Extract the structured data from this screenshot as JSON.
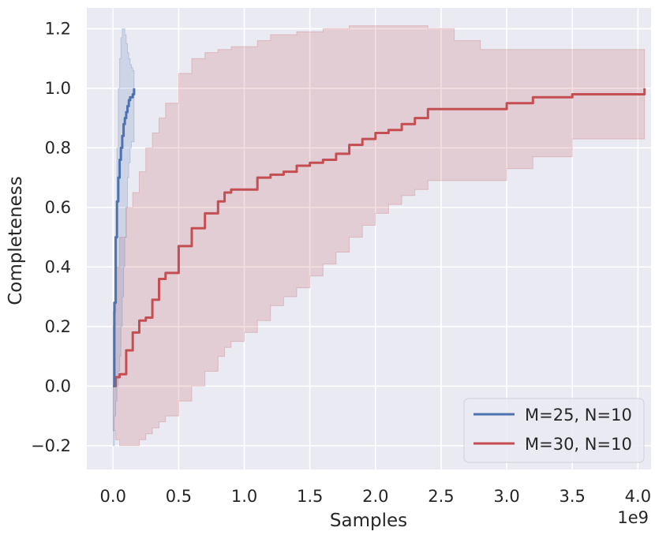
{
  "chart_data": {
    "type": "line",
    "title": "",
    "xlabel": "Samples",
    "ylabel": "Completeness",
    "x_offset_text": "1e9",
    "xlim": [
      -0.2,
      4.1
    ],
    "ylim": [
      -0.28,
      1.27
    ],
    "grid": true,
    "legend_position": "lower right",
    "x_ticks": [
      0.0,
      0.5,
      1.0,
      1.5,
      2.0,
      2.5,
      3.0,
      3.5,
      4.0
    ],
    "x_tick_labels": [
      "0.0",
      "0.5",
      "1.0",
      "1.5",
      "2.0",
      "2.5",
      "3.0",
      "3.5",
      "4.0"
    ],
    "y_ticks": [
      -0.2,
      0.0,
      0.2,
      0.4,
      0.6,
      0.8,
      1.0,
      1.2
    ],
    "y_tick_labels": [
      "−0.2",
      "0.0",
      "0.2",
      "0.4",
      "0.6",
      "0.8",
      "1.0",
      "1.2"
    ],
    "series": [
      {
        "name": "M=25, N=10",
        "color": "#4c72b0",
        "x": [
          0.0,
          0.01,
          0.02,
          0.03,
          0.04,
          0.05,
          0.06,
          0.07,
          0.08,
          0.09,
          0.1,
          0.11,
          0.12,
          0.13,
          0.14,
          0.15,
          0.16
        ],
        "y": [
          0.0,
          0.28,
          0.5,
          0.62,
          0.7,
          0.76,
          0.8,
          0.84,
          0.88,
          0.9,
          0.92,
          0.94,
          0.96,
          0.97,
          0.97,
          0.98,
          1.0
        ],
        "lower": [
          -0.2,
          -0.1,
          -0.05,
          0.0,
          0.05,
          0.1,
          0.2,
          0.3,
          0.4,
          0.5,
          0.6,
          0.7,
          0.75,
          0.8,
          0.82,
          0.82,
          0.82
        ],
        "upper": [
          0.2,
          0.25,
          0.5,
          0.8,
          1.0,
          1.1,
          1.17,
          1.2,
          1.2,
          1.18,
          1.15,
          1.12,
          1.1,
          1.08,
          1.07,
          1.06,
          1.06
        ]
      },
      {
        "name": "M=30, N=10",
        "color": "#c44e52",
        "x": [
          0.0,
          0.02,
          0.05,
          0.1,
          0.15,
          0.2,
          0.25,
          0.3,
          0.35,
          0.4,
          0.5,
          0.6,
          0.7,
          0.8,
          0.85,
          0.9,
          1.0,
          1.1,
          1.2,
          1.3,
          1.4,
          1.5,
          1.6,
          1.7,
          1.8,
          1.9,
          2.0,
          2.1,
          2.2,
          2.3,
          2.4,
          2.6,
          2.8,
          3.0,
          3.2,
          3.5,
          3.8,
          4.0,
          4.05
        ],
        "y": [
          0.0,
          0.03,
          0.04,
          0.12,
          0.18,
          0.22,
          0.23,
          0.29,
          0.36,
          0.38,
          0.47,
          0.53,
          0.58,
          0.62,
          0.65,
          0.66,
          0.66,
          0.7,
          0.71,
          0.72,
          0.74,
          0.75,
          0.76,
          0.78,
          0.81,
          0.83,
          0.85,
          0.86,
          0.88,
          0.9,
          0.93,
          0.93,
          0.93,
          0.95,
          0.97,
          0.98,
          0.98,
          0.98,
          1.0
        ],
        "lower": [
          -0.15,
          -0.18,
          -0.2,
          -0.2,
          -0.2,
          -0.18,
          -0.16,
          -0.14,
          -0.12,
          -0.1,
          -0.05,
          0.0,
          0.05,
          0.1,
          0.13,
          0.15,
          0.18,
          0.22,
          0.27,
          0.3,
          0.33,
          0.37,
          0.41,
          0.45,
          0.5,
          0.54,
          0.58,
          0.61,
          0.64,
          0.66,
          0.69,
          0.69,
          0.69,
          0.73,
          0.77,
          0.83,
          0.83,
          0.83,
          0.88
        ],
        "upper": [
          0.25,
          0.4,
          0.5,
          0.6,
          0.65,
          0.72,
          0.8,
          0.85,
          0.9,
          0.95,
          1.05,
          1.1,
          1.12,
          1.13,
          1.13,
          1.14,
          1.14,
          1.16,
          1.18,
          1.18,
          1.19,
          1.19,
          1.2,
          1.2,
          1.21,
          1.21,
          1.21,
          1.21,
          1.21,
          1.21,
          1.2,
          1.16,
          1.13,
          1.13,
          1.13,
          1.13,
          1.13,
          1.13,
          1.1
        ]
      }
    ]
  }
}
